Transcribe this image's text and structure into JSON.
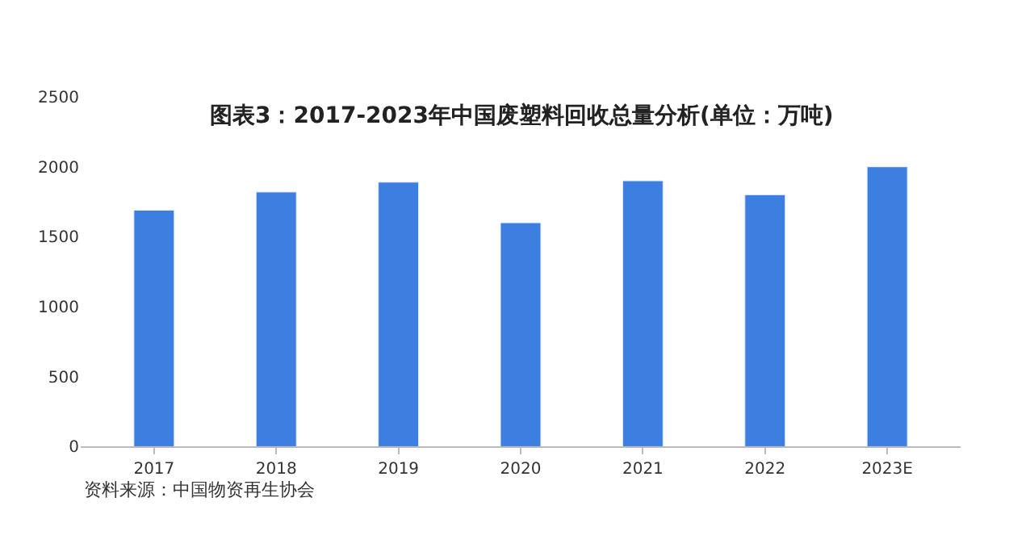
{
  "chart_data": {
    "type": "bar",
    "title": "图表3：2017-2023年中国废塑料回收总量分析(单位：万吨)",
    "categories": [
      "2017",
      "2018",
      "2019",
      "2020",
      "2021",
      "2022",
      "2023E"
    ],
    "values": [
      1690,
      1820,
      1890,
      1600,
      1900,
      1800,
      2000
    ],
    "color": "#3c7fe0",
    "ylim": [
      0,
      2500
    ],
    "yticks": [
      0,
      500,
      1000,
      1500,
      2000,
      2500
    ],
    "annotations": [
      "资料来源：中国物资再生协会"
    ]
  }
}
